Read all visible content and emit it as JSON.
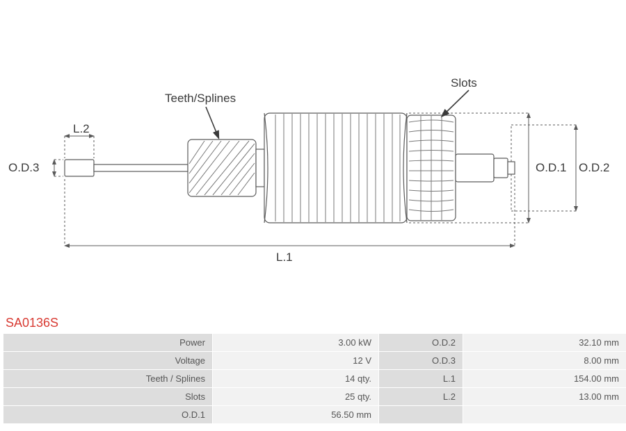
{
  "part_code": "SA0136S",
  "diagram": {
    "labels": {
      "L2": "L.2",
      "OD3": "O.D.3",
      "teeth": "Teeth/Splines",
      "slots": "Slots",
      "OD1": "O.D.1",
      "OD2": "O.D.2",
      "L1": "L.1"
    },
    "colors": {
      "stroke": "#5a5a5a",
      "dash": "#5a5a5a",
      "bg": "#ffffff",
      "label_color": "#3a3a3a",
      "part_code_color": "#d83a32",
      "table_key_bg": "#dddddd",
      "table_val_bg": "#f2f2f2",
      "table_text": "#555555"
    },
    "label_fontsize": 17,
    "partcode_fontsize": 18,
    "table_fontsize": 13,
    "stroke_width": 1.2,
    "dash_pattern": "3,3"
  },
  "specs": {
    "rows": [
      {
        "k1": "Power",
        "v1": "3.00 kW",
        "k2": "O.D.2",
        "v2": "32.10 mm"
      },
      {
        "k1": "Voltage",
        "v1": "12 V",
        "k2": "O.D.3",
        "v2": "8.00 mm"
      },
      {
        "k1": "Teeth / Splines",
        "v1": "14 qty.",
        "k2": "L.1",
        "v2": "154.00 mm"
      },
      {
        "k1": "Slots",
        "v1": "25 qty.",
        "k2": "L.2",
        "v2": "13.00 mm"
      },
      {
        "k1": "O.D.1",
        "v1": "56.50 mm",
        "k2": "",
        "v2": ""
      }
    ]
  }
}
